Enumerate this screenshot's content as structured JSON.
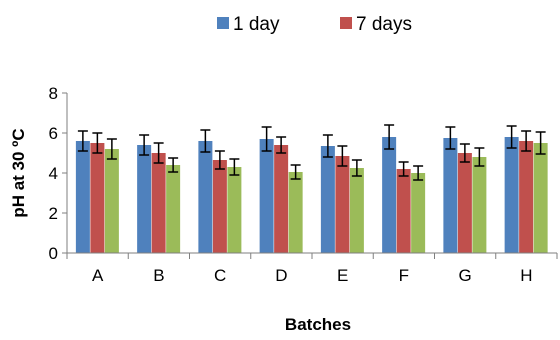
{
  "chart_data": {
    "type": "bar",
    "title": "",
    "xlabel": "Batches",
    "ylabel": "pH at 30 ºC",
    "ylim": [
      0,
      8
    ],
    "yticks": [
      0,
      2,
      4,
      6,
      8
    ],
    "grid": false,
    "legend_position": "top",
    "categories": [
      "A",
      "B",
      "C",
      "D",
      "E",
      "F",
      "G",
      "H"
    ],
    "series": [
      {
        "name": "1 day",
        "color": "#4f81bd",
        "values": [
          5.6,
          5.4,
          5.6,
          5.7,
          5.35,
          5.8,
          5.75,
          5.8
        ],
        "errors": [
          0.5,
          0.5,
          0.55,
          0.6,
          0.55,
          0.6,
          0.55,
          0.55
        ]
      },
      {
        "name": "7 days",
        "color": "#c0504d",
        "values": [
          5.5,
          5.0,
          4.65,
          5.4,
          4.85,
          4.2,
          5.0,
          5.6
        ],
        "errors": [
          0.5,
          0.5,
          0.45,
          0.4,
          0.5,
          0.35,
          0.45,
          0.5
        ]
      },
      {
        "name": "",
        "color": "#9bbb59",
        "values": [
          5.2,
          4.4,
          4.3,
          4.05,
          4.25,
          4.0,
          4.8,
          5.5
        ],
        "errors": [
          0.5,
          0.35,
          0.4,
          0.35,
          0.4,
          0.35,
          0.45,
          0.55
        ]
      }
    ]
  }
}
